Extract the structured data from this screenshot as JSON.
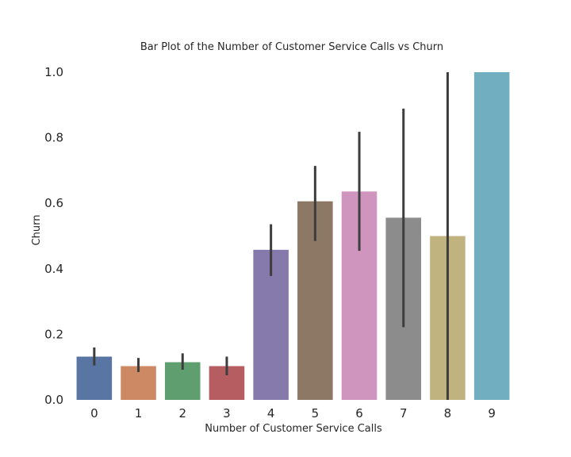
{
  "chart_data": {
    "type": "bar",
    "title": "Bar Plot of the Number of Customer Service Calls vs Churn",
    "xlabel": "Number of Customer Service Calls",
    "ylabel": "Churn",
    "categories": [
      "0",
      "1",
      "2",
      "3",
      "4",
      "5",
      "6",
      "7",
      "8",
      "9"
    ],
    "values": [
      0.132,
      0.103,
      0.115,
      0.103,
      0.458,
      0.606,
      0.636,
      0.556,
      0.5,
      1.0
    ],
    "error_low": [
      0.105,
      0.085,
      0.092,
      0.075,
      0.378,
      0.485,
      0.455,
      0.222,
      0.0,
      1.0
    ],
    "error_high": [
      0.16,
      0.128,
      0.142,
      0.132,
      0.536,
      0.714,
      0.818,
      0.889,
      1.0,
      1.0
    ],
    "ylim": [
      0,
      1.0
    ],
    "yticks": [
      "0.0",
      "0.2",
      "0.4",
      "0.6",
      "0.8",
      "1.0"
    ],
    "grid": false,
    "legend": "none",
    "colors": [
      "#5975a4",
      "#cc8963",
      "#5f9e6e",
      "#b55d60",
      "#857aab",
      "#8d7866",
      "#d095bf",
      "#8c8c8c",
      "#c1b37f",
      "#71aec0"
    ],
    "error_color": "#3d3d3d"
  }
}
